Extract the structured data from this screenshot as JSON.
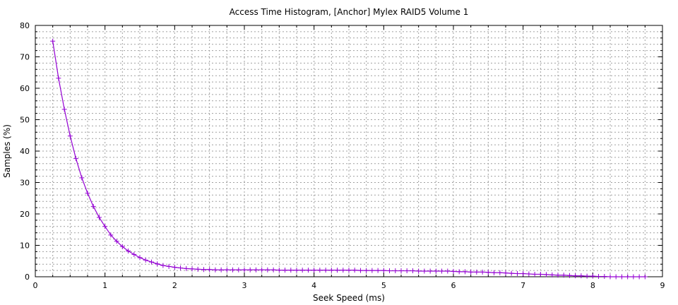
{
  "chart_data": {
    "type": "line",
    "title": "Access Time Histogram, [Anchor] Mylex RAID5 Volume 1",
    "xlabel": "Seek Speed (ms)",
    "ylabel": "Samples (%)",
    "xlim": [
      0,
      9
    ],
    "ylim": [
      0,
      80
    ],
    "xticks": [
      0,
      1,
      2,
      3,
      4,
      5,
      6,
      7,
      8,
      9
    ],
    "yticks": [
      0,
      10,
      20,
      30,
      40,
      50,
      60,
      70,
      80
    ],
    "grid": true,
    "legend": "none",
    "colors": {
      "series": "#9400d3",
      "grid": "#a0a0a0",
      "axis": "#000000"
    },
    "series": [
      {
        "marker": "plus",
        "x": [
          0.25,
          0.333,
          0.417,
          0.5,
          0.583,
          0.667,
          0.75,
          0.833,
          0.917,
          1.0,
          1.083,
          1.167,
          1.25,
          1.333,
          1.417,
          1.5,
          1.583,
          1.667,
          1.75,
          1.833,
          1.917,
          2.0,
          2.083,
          2.167,
          2.25,
          2.333,
          2.417,
          2.5,
          2.583,
          2.667,
          2.75,
          2.833,
          2.917,
          3.0,
          3.083,
          3.167,
          3.25,
          3.333,
          3.417,
          3.5,
          3.583,
          3.667,
          3.75,
          3.833,
          3.917,
          4.0,
          4.083,
          4.167,
          4.25,
          4.333,
          4.417,
          4.5,
          4.583,
          4.667,
          4.75,
          4.833,
          4.917,
          5.0,
          5.083,
          5.167,
          5.25,
          5.333,
          5.417,
          5.5,
          5.583,
          5.667,
          5.75,
          5.833,
          5.917,
          6.0,
          6.083,
          6.167,
          6.25,
          6.333,
          6.417,
          6.5,
          6.583,
          6.667,
          6.75,
          6.833,
          6.917,
          7.0,
          7.083,
          7.167,
          7.25,
          7.333,
          7.417,
          7.5,
          7.583,
          7.667,
          7.75,
          7.833,
          7.917,
          8.0,
          8.083,
          8.167,
          8.25,
          8.333,
          8.417,
          8.5,
          8.583,
          8.667,
          8.75
        ],
        "y": [
          75.0,
          63.2,
          53.3,
          44.8,
          37.6,
          31.5,
          26.6,
          22.4,
          18.9,
          16.0,
          13.3,
          11.3,
          9.6,
          8.2,
          7.1,
          6.1,
          5.3,
          4.7,
          4.1,
          3.6,
          3.3,
          3.0,
          2.8,
          2.6,
          2.5,
          2.4,
          2.3,
          2.3,
          2.2,
          2.2,
          2.2,
          2.2,
          2.2,
          2.2,
          2.2,
          2.2,
          2.2,
          2.2,
          2.2,
          2.1,
          2.1,
          2.1,
          2.1,
          2.1,
          2.1,
          2.1,
          2.1,
          2.1,
          2.1,
          2.1,
          2.1,
          2.1,
          2.1,
          2.0,
          2.0,
          2.0,
          2.0,
          2.0,
          1.9,
          1.9,
          1.9,
          1.9,
          1.9,
          1.8,
          1.8,
          1.8,
          1.8,
          1.8,
          1.8,
          1.7,
          1.6,
          1.6,
          1.5,
          1.5,
          1.5,
          1.4,
          1.3,
          1.3,
          1.2,
          1.1,
          1.0,
          1.0,
          0.9,
          0.8,
          0.8,
          0.7,
          0.6,
          0.5,
          0.5,
          0.4,
          0.3,
          0.3,
          0.2,
          0.2,
          0.1,
          0.1,
          0.0,
          0.0,
          0.0,
          0.0,
          0.0,
          0.0,
          0.0
        ]
      }
    ]
  }
}
